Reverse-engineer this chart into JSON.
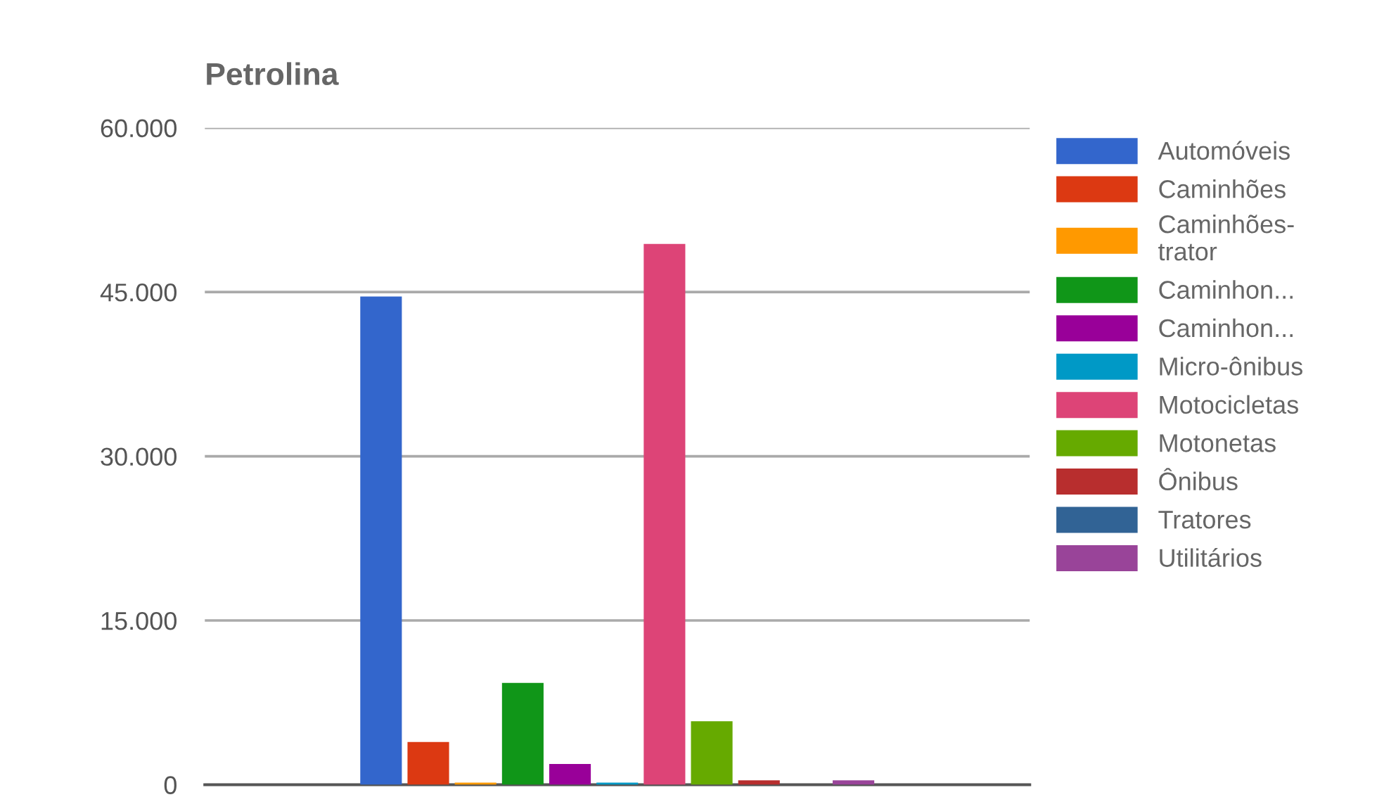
{
  "chart_data": {
    "type": "bar",
    "title": "Petrolina",
    "categories": [
      null
    ],
    "series": [
      {
        "name": "Automóveis",
        "color": "#3366cc",
        "values": [
          44600
        ]
      },
      {
        "name": "Caminhões",
        "color": "#dc3912",
        "values": [
          3900
        ]
      },
      {
        "name": "Caminhões-\ntrator",
        "color": "#ff9900",
        "values": [
          200
        ]
      },
      {
        "name": "Caminhon...",
        "color": "#109618",
        "values": [
          9300
        ]
      },
      {
        "name": "Caminhon...",
        "color": "#990099",
        "values": [
          1900
        ]
      },
      {
        "name": "Micro-ônibus",
        "color": "#0099c6",
        "values": [
          200
        ]
      },
      {
        "name": "Motocicletas",
        "color": "#dd4477",
        "values": [
          49400
        ]
      },
      {
        "name": "Motonetas",
        "color": "#66aa00",
        "values": [
          5800
        ]
      },
      {
        "name": "Ônibus",
        "color": "#b82e2e",
        "values": [
          400
        ]
      },
      {
        "name": "Tratores",
        "color": "#316395",
        "values": [
          null
        ]
      },
      {
        "name": "Utilitários",
        "color": "#994499",
        "values": [
          400
        ]
      }
    ],
    "ylim": [
      0,
      60000
    ],
    "yticks": [
      {
        "value": 0,
        "label": "0"
      },
      {
        "value": 15000,
        "label": "15.000"
      },
      {
        "value": 30000,
        "label": "30.000"
      },
      {
        "value": 45000,
        "label": "45.000"
      },
      {
        "value": 60000,
        "label": "60.000"
      }
    ],
    "grid": "y",
    "legend": "right",
    "tick_labels": "y"
  }
}
